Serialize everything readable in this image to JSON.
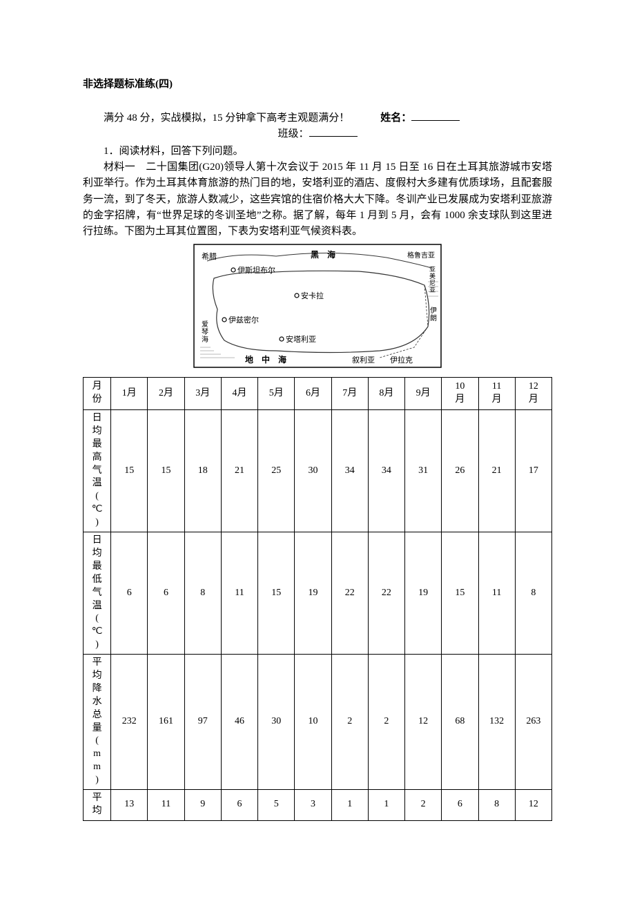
{
  "doc": {
    "title": "非选择题标准练(四)",
    "subtitle_prefix": "满分 48 分，实战模拟，15 分钟拿下高考主观题满分！",
    "name_label": "姓名：",
    "class_label": "班级：",
    "q1": "1．阅读材料，回答下列问题。",
    "material_label": "材料一",
    "material_text": "　二十国集团(G20)领导人第十次会议于 2015 年 11 月 15 日至 16 日在土耳其旅游城市安塔利亚举行。作为土耳其体育旅游的热门目的地，安塔利亚的酒店、度假村大多建有优质球场，且配套服务一流，到了冬天，旅游人数减少，这些宾馆的住宿价格大大下降。冬训产业已发展成为安塔利亚旅游的金字招牌，有“世界足球的冬训圣地”之称。据了解，每年 1 月到 5 月，会有 1000 余支球队到这里进行拉练。下图为土耳其位置图，下表为安塔利亚气候资料表。"
  },
  "map": {
    "labels": {
      "greece": "希腊",
      "black_sea": "黑　海",
      "georgia": "格鲁吉亚",
      "armenia": "亚美尼亚",
      "istanbul": "伊斯坦布尔",
      "ankara": "安卡拉",
      "izmir": "伊兹密尔",
      "antalya": "安塔利亚",
      "aegean": "爱琴海",
      "med_sea": "地　中　海",
      "syria": "叙利亚",
      "iraq": "伊拉克",
      "iran": "伊朗"
    },
    "colors": {
      "border": "#000000",
      "outline": "#333333",
      "bg": "#ffffff",
      "water_pattern": "#777777"
    }
  },
  "table": {
    "columns": [
      "月份",
      "1月",
      "2月",
      "3月",
      "4月",
      "5月",
      "6月",
      "7月",
      "8月",
      "9月",
      "10月",
      "11月",
      "12月"
    ],
    "rows": [
      {
        "label": "日均最高气温(℃)",
        "vals": [
          "15",
          "15",
          "18",
          "21",
          "25",
          "30",
          "34",
          "34",
          "31",
          "26",
          "21",
          "17"
        ]
      },
      {
        "label": "日均最低气温(℃)",
        "vals": [
          "6",
          "6",
          "8",
          "11",
          "15",
          "19",
          "22",
          "22",
          "19",
          "15",
          "11",
          "8"
        ]
      },
      {
        "label": "平均降水总量(mm)",
        "vals": [
          "232",
          "161",
          "97",
          "46",
          "30",
          "10",
          "2",
          "2",
          "12",
          "68",
          "132",
          "263"
        ]
      },
      {
        "label": "平均",
        "vals": [
          "13",
          "11",
          "9",
          "6",
          "5",
          "3",
          "1",
          "1",
          "2",
          "6",
          "8",
          "12"
        ]
      }
    ],
    "border_color": "#000000",
    "bg_color": "#ffffff",
    "font_size_pt": 11
  }
}
